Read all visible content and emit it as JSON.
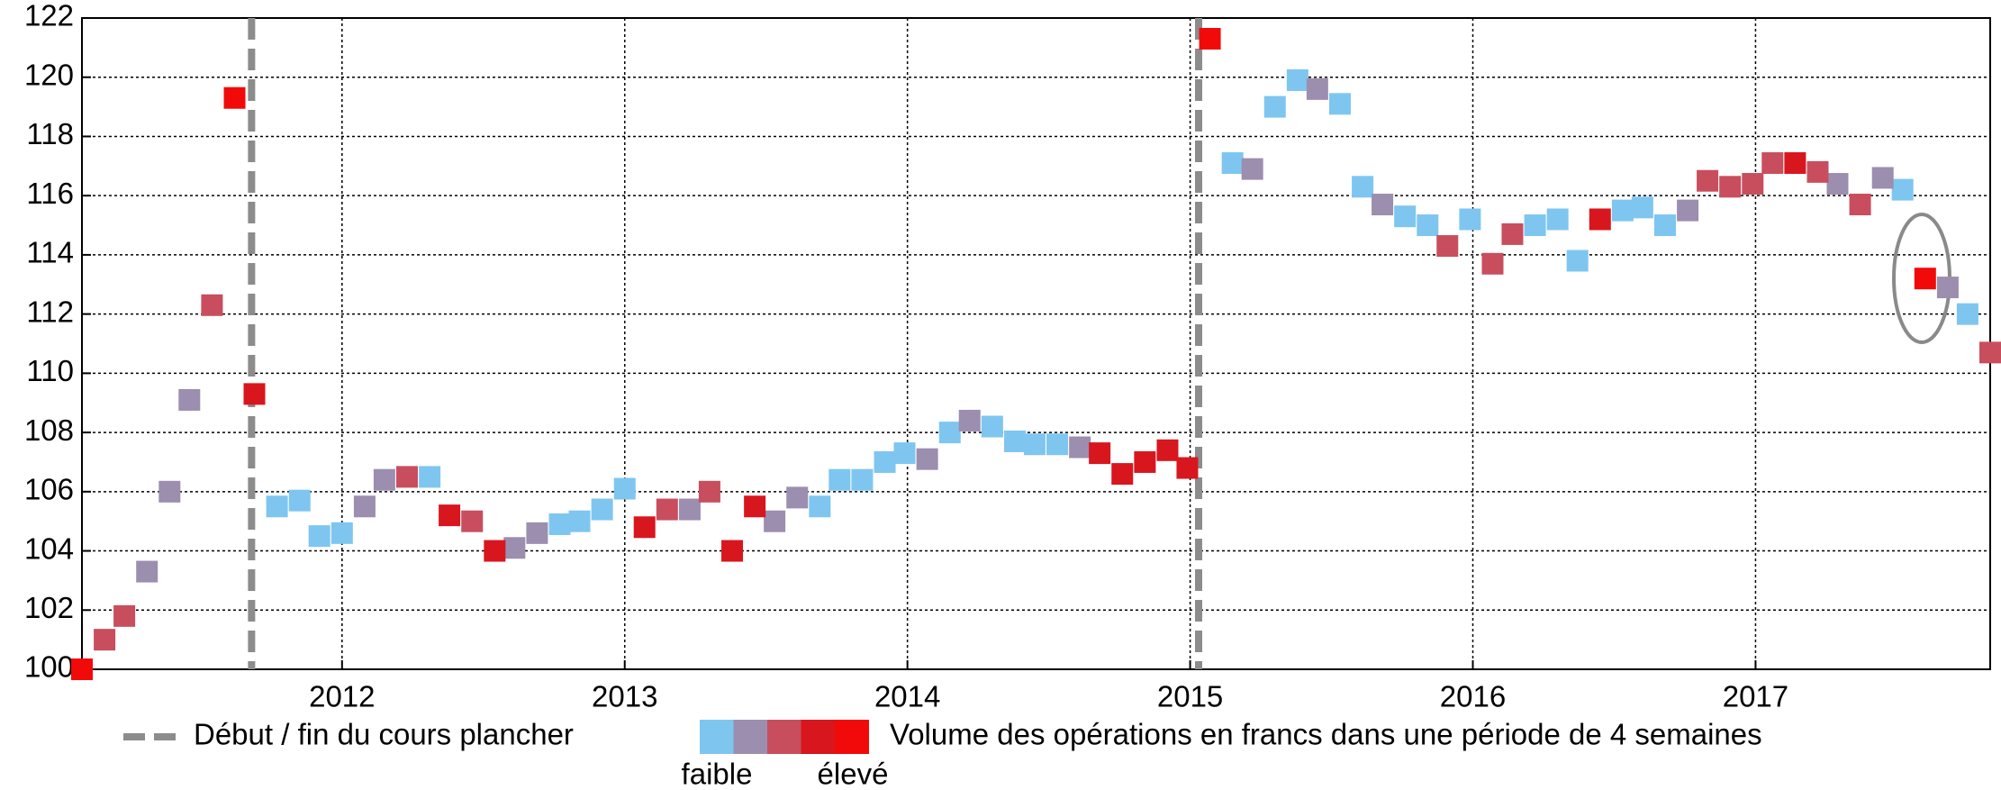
{
  "chart_data": {
    "type": "scatter",
    "xlim": [
      2011.08,
      2017.83
    ],
    "xticks": [
      2012,
      2013,
      2014,
      2015,
      2016,
      2017
    ],
    "ylim": [
      100,
      122
    ],
    "yticks": [
      100,
      102,
      104,
      106,
      108,
      110,
      112,
      114,
      116,
      118,
      120,
      122
    ],
    "grid": true,
    "vlines": {
      "label": "Début / fin du cours plancher",
      "color": "#8c8c8c",
      "x": [
        2011.68,
        2015.03
      ]
    },
    "legend_title": "Volume des opérations en francs dans une période de 4 semaines",
    "legend_low": "faible",
    "legend_high": "élevé",
    "series": [
      {
        "color": "#7ec6f0",
        "x": [
          2011.77,
          2011.85,
          2011.92,
          2012.0,
          2012.31,
          2012.77,
          2012.84,
          2012.92,
          2013.0,
          2013.69,
          2013.76,
          2013.84,
          2013.92,
          2013.99,
          2014.15,
          2014.3,
          2014.38,
          2014.45,
          2014.53,
          2015.15,
          2015.3,
          2015.38,
          2015.53,
          2015.61,
          2015.76,
          2015.84,
          2015.99,
          2016.22,
          2016.3,
          2016.37,
          2016.53,
          2016.6,
          2016.68,
          2017.52,
          2017.75
        ],
        "values": [
          105.5,
          105.7,
          104.5,
          104.6,
          106.5,
          104.9,
          105.0,
          105.4,
          106.1,
          105.5,
          106.4,
          106.4,
          107.0,
          107.3,
          108.0,
          108.2,
          107.7,
          107.6,
          107.6,
          117.1,
          119.0,
          119.9,
          119.1,
          116.3,
          115.3,
          115.0,
          115.2,
          115.0,
          115.2,
          113.8,
          115.5,
          115.6,
          115.0,
          116.2,
          112.0
        ]
      },
      {
        "color": "#9c8eaf",
        "x": [
          2011.31,
          2011.39,
          2011.46,
          2012.08,
          2012.15,
          2012.61,
          2012.69,
          2013.23,
          2013.53,
          2013.61,
          2014.07,
          2014.22,
          2014.61,
          2015.22,
          2015.45,
          2015.68,
          2016.76,
          2017.29,
          2017.45,
          2017.68
        ],
        "values": [
          103.3,
          106.0,
          109.1,
          105.5,
          106.4,
          104.1,
          104.6,
          105.4,
          105.0,
          105.8,
          107.1,
          108.4,
          107.5,
          116.9,
          119.6,
          115.7,
          115.5,
          116.4,
          116.6,
          112.9
        ]
      },
      {
        "color": "#c84e5e",
        "x": [
          2011.16,
          2011.23,
          2011.54,
          2012.23,
          2012.46,
          2013.15,
          2013.3,
          2015.91,
          2016.07,
          2016.14,
          2016.83,
          2016.91,
          2016.99,
          2017.06,
          2017.22,
          2017.37,
          2017.83
        ],
        "values": [
          101.0,
          101.8,
          112.3,
          106.5,
          105.0,
          105.4,
          106.0,
          114.3,
          113.7,
          114.7,
          116.5,
          116.3,
          116.4,
          117.1,
          116.8,
          115.7,
          110.7
        ]
      },
      {
        "color": "#d8161e",
        "x": [
          2011.69,
          2012.38,
          2012.54,
          2013.07,
          2013.38,
          2013.46,
          2014.68,
          2014.76,
          2014.84,
          2014.92,
          2014.99,
          2016.45,
          2017.14
        ],
        "values": [
          109.3,
          105.2,
          104.0,
          104.8,
          104.0,
          105.5,
          107.3,
          106.6,
          107.0,
          107.4,
          106.8,
          115.2,
          117.1
        ]
      },
      {
        "color": "#f20a0a",
        "x": [
          2011.08,
          2011.62,
          2015.07,
          2017.6
        ],
        "values": [
          100.0,
          119.3,
          121.3,
          113.2
        ]
      }
    ]
  }
}
